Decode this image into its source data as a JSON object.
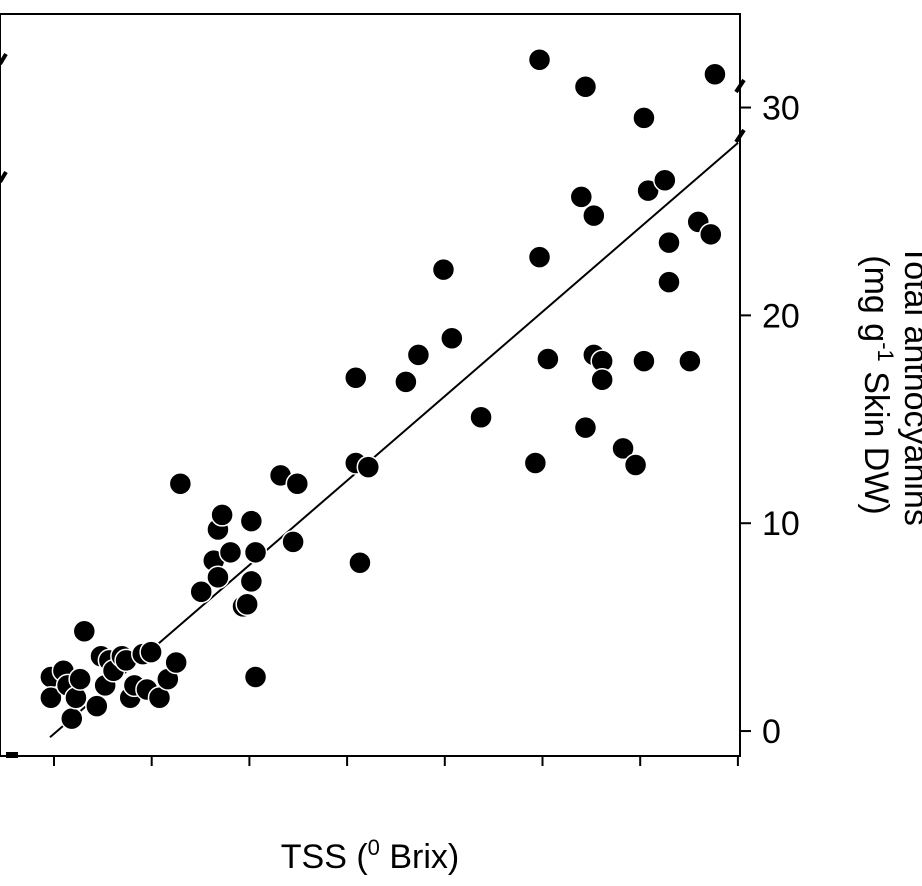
{
  "chart_data": {
    "type": "scatter",
    "title": "",
    "xlabel": "TSS (",
    "xlabel_sup": "0",
    "xlabel_rest": " Brix)",
    "ylabel_line1": "Total anthocyanins",
    "ylabel_line2_a": "(mg g",
    "ylabel_line2_sup": "-1",
    "ylabel_line2_b": " Skin DW)",
    "y_axis_position": "right",
    "ylim": [
      -1.2,
      34.5
    ],
    "y_ticks": [
      0,
      10,
      20,
      30
    ],
    "y_tick_labels": [
      "0",
      "10",
      "20",
      "30"
    ],
    "x_tick_labels": [],
    "grid": false,
    "marker_color": "#000000",
    "points": [
      [
        0.5,
        2.6
      ],
      [
        0.5,
        1.6
      ],
      [
        0.8,
        2.9
      ],
      [
        0.9,
        2.2
      ],
      [
        1.0,
        0.6
      ],
      [
        1.1,
        1.6
      ],
      [
        1.2,
        2.5
      ],
      [
        1.3,
        4.8
      ],
      [
        1.6,
        1.2
      ],
      [
        1.7,
        3.6
      ],
      [
        1.8,
        2.2
      ],
      [
        1.9,
        3.4
      ],
      [
        2.0,
        2.9
      ],
      [
        2.2,
        3.6
      ],
      [
        2.3,
        3.4
      ],
      [
        2.4,
        1.6
      ],
      [
        2.5,
        2.2
      ],
      [
        2.7,
        3.7
      ],
      [
        2.8,
        2.0
      ],
      [
        2.9,
        3.8
      ],
      [
        3.1,
        1.6
      ],
      [
        3.3,
        2.5
      ],
      [
        3.5,
        3.3
      ],
      [
        3.6,
        11.9
      ],
      [
        4.1,
        6.7
      ],
      [
        4.4,
        8.2
      ],
      [
        4.5,
        7.4
      ],
      [
        4.5,
        9.7
      ],
      [
        4.6,
        10.4
      ],
      [
        4.8,
        8.6
      ],
      [
        5.1,
        6.0
      ],
      [
        5.2,
        6.1
      ],
      [
        5.3,
        7.2
      ],
      [
        5.3,
        10.1
      ],
      [
        5.4,
        8.6
      ],
      [
        5.4,
        2.6
      ],
      [
        6.0,
        12.3
      ],
      [
        6.3,
        9.1
      ],
      [
        6.4,
        11.9
      ],
      [
        7.8,
        17.0
      ],
      [
        7.8,
        12.9
      ],
      [
        7.9,
        8.1
      ],
      [
        8.1,
        12.7
      ],
      [
        9.0,
        16.8
      ],
      [
        9.3,
        18.1
      ],
      [
        9.9,
        22.2
      ],
      [
        10.1,
        18.9
      ],
      [
        10.8,
        15.1
      ],
      [
        12.1,
        12.9
      ],
      [
        12.2,
        32.3
      ],
      [
        12.2,
        22.8
      ],
      [
        12.4,
        17.9
      ],
      [
        13.2,
        25.7
      ],
      [
        13.3,
        14.6
      ],
      [
        13.3,
        31.0
      ],
      [
        13.5,
        18.1
      ],
      [
        13.5,
        24.8
      ],
      [
        13.7,
        17.8
      ],
      [
        13.7,
        16.9
      ],
      [
        14.2,
        13.6
      ],
      [
        14.5,
        12.8
      ],
      [
        14.7,
        17.8
      ],
      [
        14.7,
        29.5
      ],
      [
        14.8,
        26.0
      ],
      [
        15.2,
        26.5
      ],
      [
        15.3,
        23.5
      ],
      [
        15.3,
        21.6
      ],
      [
        15.8,
        17.8
      ],
      [
        16.0,
        24.5
      ],
      [
        16.3,
        23.9
      ],
      [
        16.4,
        31.6
      ]
    ],
    "trendline": {
      "x": [
        0.0,
        17.0
      ],
      "y": [
        -0.3,
        28.3
      ]
    }
  }
}
